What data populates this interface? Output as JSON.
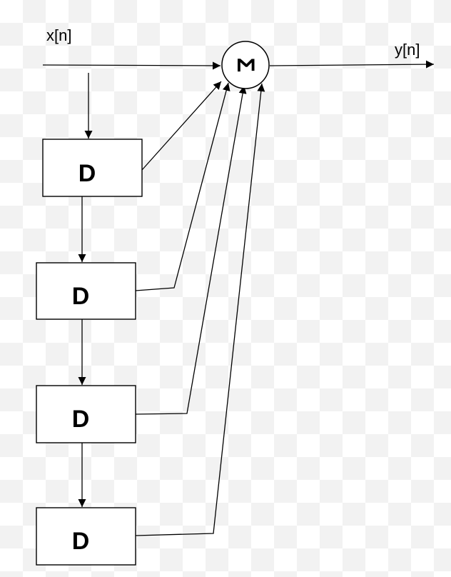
{
  "diagram": {
    "input_label": "x[n]",
    "output_label": "y[n]",
    "summer_symbol": "Σ",
    "delay_blocks": [
      {
        "label": "D"
      },
      {
        "label": "D"
      },
      {
        "label": "D"
      },
      {
        "label": "D"
      }
    ]
  }
}
